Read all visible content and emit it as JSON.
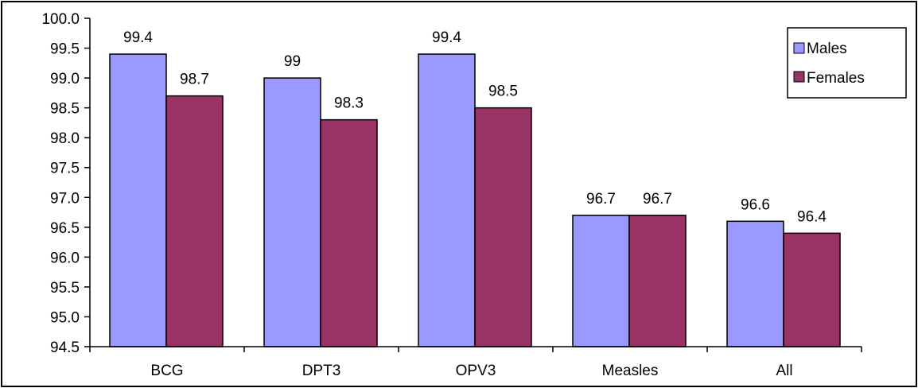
{
  "chart_data": {
    "type": "bar",
    "categories": [
      "BCG",
      "DPT3",
      "OPV3",
      "Measles",
      "All"
    ],
    "series": [
      {
        "name": "Males",
        "values": [
          99.4,
          99,
          99.4,
          96.7,
          96.6
        ],
        "labels": [
          "99.4",
          "99",
          "99.4",
          "96.7",
          "96.6"
        ],
        "color": "#9999ff"
      },
      {
        "name": "Females",
        "values": [
          98.7,
          98.3,
          98.5,
          96.7,
          96.4
        ],
        "labels": [
          "98.7",
          "98.3",
          "98.5",
          "96.7",
          "96.4"
        ],
        "color": "#993366"
      }
    ],
    "yticks": [
      "94.5",
      "95.0",
      "95.5",
      "96.0",
      "96.5",
      "97.0",
      "97.5",
      "98.0",
      "98.5",
      "99.0",
      "99.5",
      "100.0"
    ],
    "ylim": [
      94.5,
      100.0
    ],
    "grid": false,
    "legend": "top-right",
    "title": "",
    "xlabel": "",
    "ylabel": ""
  }
}
